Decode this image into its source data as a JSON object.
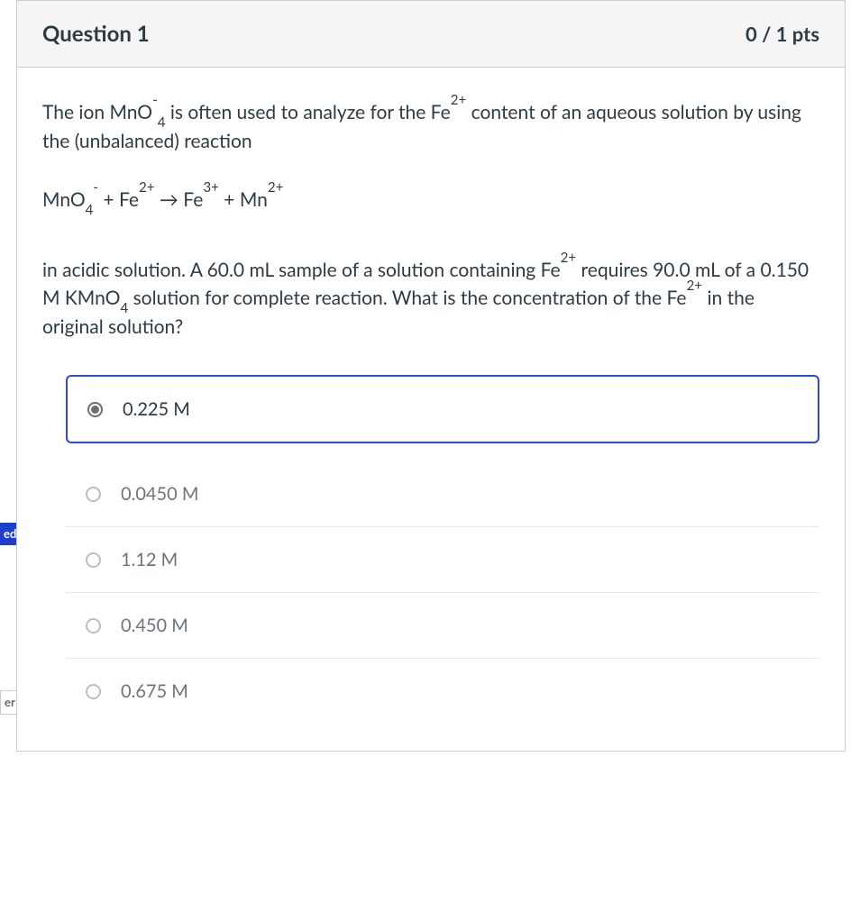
{
  "question": {
    "title": "Question 1",
    "points": "0 / 1 pts",
    "stem": {
      "p1_pre": "The ion MnO",
      "p1_sup1": "-",
      "p1_sub1": "4",
      "p1_mid": " is often used to analyze for the Fe",
      "p1_sup2": "2+",
      "p1_post": " content of an aqueous solution by using the (unbalanced) reaction",
      "eq_1": "MnO",
      "eq_sub1": "4",
      "eq_sup1": "-",
      "eq_2": " + Fe",
      "eq_sup2": "2+",
      "eq_3": " → Fe",
      "eq_sup3": "3+",
      "eq_4": " + Mn",
      "eq_sup4": "2+",
      "p2_pre": "in acidic solution. A 60.0  mL sample of a solution containing Fe",
      "p2_sup1": "2+",
      "p2_mid1": " requires 90.0 mL of a 0.150 M KMnO",
      "p2_sub1": "4",
      "p2_mid2": " solution for complete reaction. What is the concentration of the Fe",
      "p2_sup2": "2+",
      "p2_post": " in the original solution?"
    },
    "answers": [
      {
        "label": "0.225 M",
        "selected": true
      },
      {
        "label": "0.0450 M",
        "selected": false
      },
      {
        "label": "1.12 M",
        "selected": false
      },
      {
        "label": "0.450 M",
        "selected": false
      },
      {
        "label": "0.675 M",
        "selected": false
      }
    ],
    "flags": {
      "selected_suffix": "ed",
      "correct_suffix": "er"
    }
  },
  "colors": {
    "border": "#c7cdd1",
    "header_bg": "#f5f5f5",
    "text": "#2d3b45",
    "muted": "#6c757d",
    "selected_border": "#2e49d6",
    "flag_bg": "#1d3fcf"
  }
}
